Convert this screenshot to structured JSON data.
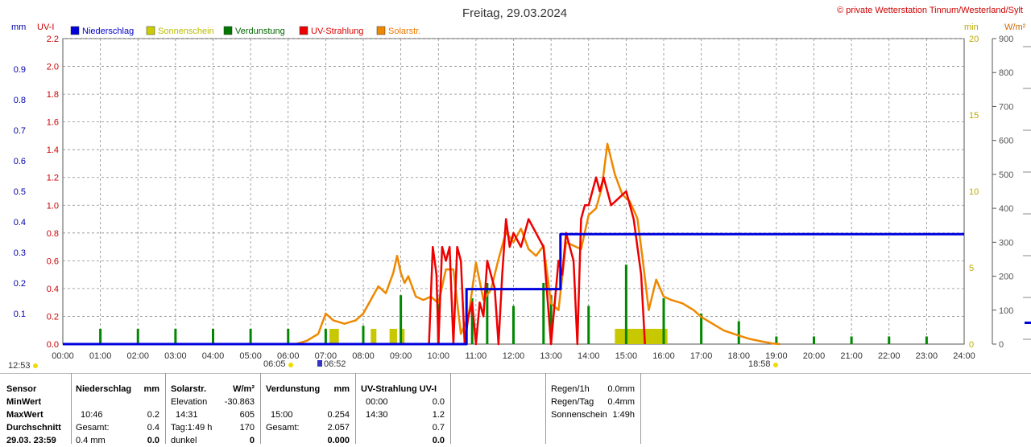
{
  "title": "Freitag, 29.03.2024",
  "copyright": "© private Wetterstation Tinnum/Westerland/Sylt",
  "legend": [
    {
      "label": "Niederschlag",
      "color": "#0000dd",
      "text_color": "#0000cc"
    },
    {
      "label": "Sonnenschein",
      "color": "#cccc00",
      "text_color": "#bbbb00"
    },
    {
      "label": "Verdunstung",
      "color": "#007700",
      "text_color": "#006600"
    },
    {
      "label": "UV-Strahlung",
      "color": "#ee0000",
      "text_color": "#dd0000"
    },
    {
      "label": "Solarstr.",
      "color": "#ee8800",
      "text_color": "#ee7700"
    }
  ],
  "axes": {
    "mm_title": "mm",
    "uv_title": "UV-I",
    "min_title": "min",
    "wm2_title": "W/m²",
    "mm_ticks": [
      "0.0",
      "0.1",
      "0.2",
      "0.3",
      "0.4",
      "0.5",
      "0.6",
      "0.7",
      "0.8",
      "0.9"
    ],
    "uv_ticks": [
      "0.0",
      "0.2",
      "0.4",
      "0.6",
      "0.8",
      "1.0",
      "1.2",
      "1.4",
      "1.6",
      "1.8",
      "2.0",
      "2.2"
    ],
    "min_ticks": [
      "0",
      "5",
      "10",
      "15",
      "20"
    ],
    "wm2_ticks": [
      "0",
      "100",
      "200",
      "300",
      "400",
      "500",
      "600",
      "700",
      "800",
      "900"
    ],
    "x_ticks": [
      "00:00",
      "01:00",
      "02:00",
      "03:00",
      "04:00",
      "05:00",
      "06:00",
      "07:00",
      "08:00",
      "09:00",
      "10:00",
      "11:00",
      "12:00",
      "13:00",
      "14:00",
      "15:00",
      "16:00",
      "17:00",
      "18:00",
      "19:00",
      "20:00",
      "21:00",
      "22:00",
      "23:00",
      "24:00"
    ]
  },
  "markers": {
    "day_length": "12:53",
    "sunrise": "06:05",
    "civil_start": "06:52",
    "sunset": "18:58"
  },
  "chart_data": {
    "type": "line",
    "x_unit": "hour of day",
    "xlim": [
      0,
      24
    ],
    "ylim_mm": [
      0,
      0.9
    ],
    "ylim_uv": [
      0,
      2.2
    ],
    "ylim_min": [
      0,
      20
    ],
    "ylim_wm2": [
      0,
      900
    ],
    "series": [
      {
        "name": "Niederschlag",
        "axis": "mm",
        "type": "step",
        "x": [
          0,
          10.75,
          10.75,
          13.25,
          13.25,
          24
        ],
        "y": [
          0,
          0,
          0.18,
          0.18,
          0.36,
          0.36
        ]
      },
      {
        "name": "Solarstr.",
        "axis": "wm2",
        "type": "line",
        "x": [
          6.2,
          6.5,
          6.8,
          7.0,
          7.2,
          7.5,
          7.8,
          8.0,
          8.2,
          8.4,
          8.6,
          8.8,
          8.9,
          9.0,
          9.1,
          9.2,
          9.4,
          9.6,
          9.8,
          10.0,
          10.2,
          10.4,
          10.6,
          10.8,
          11.0,
          11.2,
          11.4,
          11.6,
          11.8,
          12.0,
          12.2,
          12.4,
          12.6,
          12.8,
          13.0,
          13.2,
          13.4,
          13.6,
          13.8,
          14.0,
          14.2,
          14.35,
          14.5,
          14.7,
          14.9,
          15.1,
          15.3,
          15.45,
          15.6,
          15.8,
          16.0,
          16.2,
          16.5,
          16.8,
          17.0,
          17.3,
          17.6,
          18.0,
          18.3,
          18.6,
          18.9,
          19.1
        ],
        "y": [
          0,
          10,
          30,
          90,
          70,
          60,
          70,
          90,
          130,
          170,
          150,
          210,
          260,
          210,
          180,
          200,
          140,
          130,
          140,
          120,
          220,
          220,
          30,
          80,
          240,
          130,
          160,
          250,
          330,
          300,
          340,
          280,
          260,
          290,
          120,
          100,
          300,
          290,
          280,
          380,
          400,
          460,
          590,
          500,
          440,
          420,
          370,
          240,
          100,
          190,
          140,
          130,
          120,
          100,
          80,
          60,
          40,
          25,
          15,
          8,
          2,
          0
        ]
      },
      {
        "name": "UV-Strahlung",
        "axis": "uv",
        "type": "line",
        "x": [
          9.75,
          9.85,
          9.95,
          10.0,
          10.1,
          10.2,
          10.3,
          10.4,
          10.5,
          10.6,
          10.7,
          10.8,
          10.9,
          11.0,
          11.1,
          11.2,
          11.3,
          11.4,
          11.5,
          11.6,
          11.7,
          11.8,
          11.9,
          12.0,
          12.2,
          12.4,
          12.6,
          12.8,
          13.0,
          13.2,
          13.3,
          13.4,
          13.5,
          13.6,
          13.7,
          13.8,
          13.9,
          14.0,
          14.1,
          14.2,
          14.3,
          14.4,
          14.5,
          14.6,
          14.8,
          15.0,
          15.2,
          15.4,
          15.5
        ],
        "y": [
          0,
          0.7,
          0.5,
          0.0,
          0.7,
          0.6,
          0.7,
          0.0,
          0.7,
          0.6,
          0.0,
          0.2,
          0.3,
          0.0,
          0.3,
          0.2,
          0.6,
          0.5,
          0.4,
          0.0,
          0.5,
          0.9,
          0.7,
          0.8,
          0.7,
          0.9,
          0.8,
          0.7,
          0.0,
          0.6,
          0.5,
          0.8,
          0.7,
          0.6,
          0.0,
          0.9,
          1.0,
          1.0,
          1.1,
          1.2,
          1.1,
          1.2,
          1.1,
          1.0,
          1.05,
          1.1,
          0.9,
          0.5,
          0.0
        ]
      },
      {
        "name": "Verdunstung",
        "axis": "min",
        "type": "bar",
        "x": [
          1.0,
          2.0,
          3.0,
          4.0,
          5.0,
          6.0,
          7.0,
          8.0,
          9.0,
          10.0,
          10.9,
          11.3,
          12.0,
          12.8,
          13.0,
          14.0,
          15.0,
          16.0,
          17.0,
          18.0,
          19.0,
          20.0,
          21.0,
          22.0,
          23.0
        ],
        "y": [
          1.0,
          1.0,
          1.0,
          1.0,
          1.0,
          1.0,
          1.0,
          1.2,
          3.2,
          3.0,
          3.0,
          4.0,
          2.5,
          4.0,
          3.2,
          2.5,
          5.2,
          3.0,
          2.0,
          1.5,
          0.5,
          0.5,
          0.5,
          0.5,
          0.5
        ]
      },
      {
        "name": "Sonnenschein",
        "axis": "min",
        "type": "bar",
        "x": [
          7.1,
          8.2,
          8.7,
          9.0,
          14.7
        ],
        "width": [
          0.25,
          0.15,
          0.2,
          0.1,
          1.4
        ],
        "y": [
          1.0,
          1.0,
          1.0,
          1.0,
          1.0
        ]
      }
    ]
  },
  "table": {
    "sensor": {
      "rows": [
        "Sensor",
        "MinWert",
        "MaxWert",
        "Durchschnitt",
        "29.03. 23:59"
      ]
    },
    "niederschlag": {
      "title": "Niederschlag",
      "unit": "mm",
      "rows": [
        [
          "",
          ""
        ],
        [
          "10:46",
          "0.2"
        ],
        [
          "Gesamt:",
          "0.4"
        ],
        [
          "0.4 mm",
          "0.0"
        ]
      ]
    },
    "solar": {
      "title": "Solarstr.",
      "unit": "W/m²",
      "rows": [
        [
          "Elevation",
          "-30.863"
        ],
        [
          "14:31",
          "605"
        ],
        [
          "Tag:1:49 h",
          "170"
        ],
        [
          "dunkel",
          "0"
        ]
      ]
    },
    "verdunstung": {
      "title": "Verdunstung",
      "unit": "mm",
      "rows": [
        [
          "",
          ""
        ],
        [
          "15:00",
          "0.254"
        ],
        [
          "Gesamt:",
          "2.057"
        ],
        [
          "",
          "0.000"
        ]
      ]
    },
    "uv": {
      "title": "UV-Strahlung UV-I",
      "rows": [
        [
          "00:00",
          "0.0"
        ],
        [
          "14:30",
          "1.2"
        ],
        [
          "",
          "0.7"
        ],
        [
          "",
          "0.0"
        ]
      ]
    },
    "summary": [
      {
        "label": "Regen/1h",
        "value": "0.0mm"
      },
      {
        "label": "Regen/Tag",
        "value": "0.4mm"
      },
      {
        "label": "Sonnenschein",
        "value": "1:49h"
      }
    ]
  },
  "colors": {
    "grid": "#888888",
    "axis_dark": "#444444",
    "mm_axis": "#0000aa",
    "uv_axis": "#cc0000",
    "min_axis": "#bbaa00"
  }
}
